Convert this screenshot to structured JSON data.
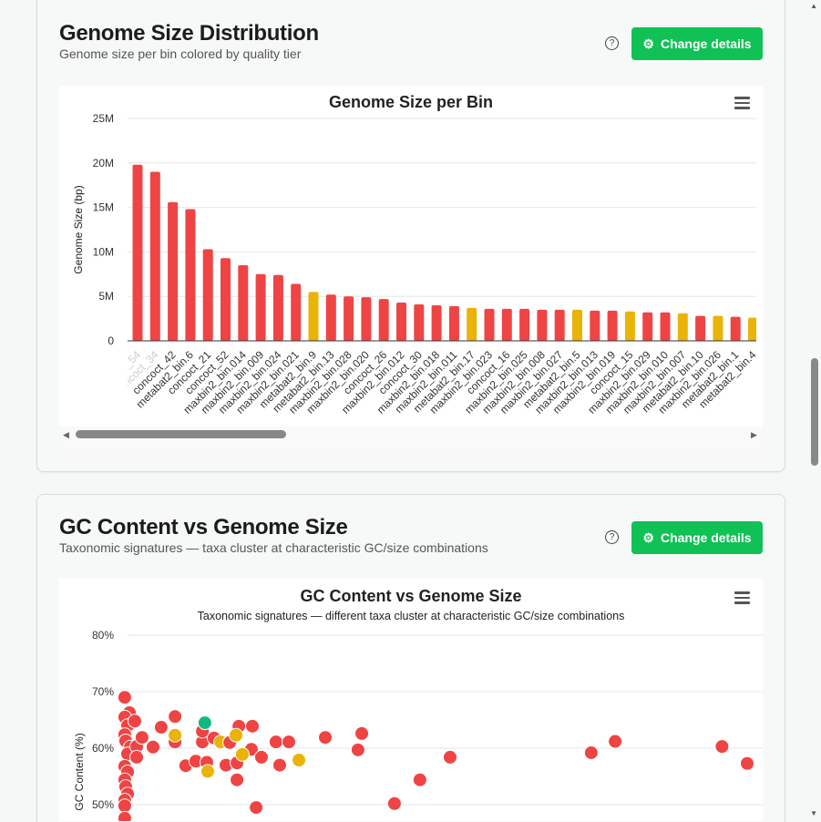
{
  "section1": {
    "title": "Genome Size Distribution",
    "subtitle": "Genome size per bin colored by quality tier",
    "button": "Change details",
    "help": "?"
  },
  "section2": {
    "title": "GC Content vs Genome Size",
    "subtitle": "Taxonomic signatures — taxa cluster at characteristic GC/size combinations",
    "button": "Change details",
    "help": "?"
  },
  "colors": {
    "low": "#ef4444",
    "medium": "#eab308",
    "high": "#10b981",
    "button": "#10c155"
  },
  "chart_data": [
    {
      "type": "bar",
      "title": "Genome Size per Bin",
      "ylabel": "Genome Size (bp)",
      "ylim": [
        0,
        25000000
      ],
      "yticks": [
        "0",
        "5M",
        "10M",
        "15M",
        "20M",
        "25M"
      ],
      "grid": true,
      "categories": [
        "concoct_54",
        "concoct_34",
        "concoct_42",
        "metabat2_bin.6",
        "concoct_21",
        "concoct_52",
        "maxbin2_bin.014",
        "maxbin2_bin.009",
        "maxbin2_bin.024",
        "maxbin2_bin.021",
        "metabat2_bin.9",
        "metabat2_bin.13",
        "maxbin2_bin.028",
        "maxbin2_bin.020",
        "concoct_26",
        "maxbin2_bin.012",
        "concoct_30",
        "maxbin2_bin.018",
        "maxbin2_bin.011",
        "metabat2_bin.17",
        "maxbin2_bin.023",
        "concoct_16",
        "maxbin2_bin.025",
        "maxbin2_bin.008",
        "maxbin2_bin.027",
        "metabat2_bin.5",
        "maxbin2_bin.013",
        "maxbin2_bin.019",
        "concoct_15",
        "maxbin2_bin.029",
        "maxbin2_bin.010",
        "maxbin2_bin.007",
        "metabat2_bin.10",
        "maxbin2_bin.026",
        "metabat2_bin.1",
        "metabat2_bin.4"
      ],
      "values": [
        19800000,
        19000000,
        15600000,
        14800000,
        10300000,
        9300000,
        8500000,
        7500000,
        7400000,
        6400000,
        5500000,
        5200000,
        5000000,
        4900000,
        4700000,
        4300000,
        4100000,
        4000000,
        3900000,
        3700000,
        3600000,
        3600000,
        3600000,
        3500000,
        3500000,
        3500000,
        3400000,
        3400000,
        3300000,
        3200000,
        3200000,
        3100000,
        2800000,
        2800000,
        2700000,
        2600000
      ],
      "tiers": [
        "low",
        "low",
        "low",
        "low",
        "low",
        "low",
        "low",
        "low",
        "low",
        "low",
        "medium",
        "low",
        "low",
        "low",
        "low",
        "low",
        "low",
        "low",
        "low",
        "medium",
        "low",
        "low",
        "low",
        "low",
        "low",
        "medium",
        "low",
        "low",
        "medium",
        "low",
        "low",
        "medium",
        "low",
        "medium",
        "low",
        "medium"
      ]
    },
    {
      "type": "scatter",
      "title": "GC Content vs Genome Size",
      "subtitle": "Taxonomic signatures — different taxa cluster at characteristic GC/size combinations",
      "ylabel": "GC Content (%)",
      "ylim": [
        45,
        80
      ],
      "yticks": [
        "50%",
        "60%",
        "70%",
        "80%"
      ],
      "grid": true,
      "points": [
        {
          "x": 0.2,
          "y": 69.0,
          "tier": "low"
        },
        {
          "x": 0.35,
          "y": 66.3,
          "tier": "low"
        },
        {
          "x": 0.2,
          "y": 65.5,
          "tier": "low"
        },
        {
          "x": 0.29,
          "y": 64.0,
          "tier": "low"
        },
        {
          "x": 0.52,
          "y": 64.8,
          "tier": "low"
        },
        {
          "x": 0.2,
          "y": 62.4,
          "tier": "low"
        },
        {
          "x": 0.23,
          "y": 61.3,
          "tier": "low"
        },
        {
          "x": 0.38,
          "y": 60.2,
          "tier": "low"
        },
        {
          "x": 0.29,
          "y": 59.0,
          "tier": "low"
        },
        {
          "x": 0.58,
          "y": 60.3,
          "tier": "low"
        },
        {
          "x": 0.58,
          "y": 58.4,
          "tier": "low"
        },
        {
          "x": 0.2,
          "y": 56.8,
          "tier": "low"
        },
        {
          "x": 0.29,
          "y": 55.8,
          "tier": "low"
        },
        {
          "x": 0.2,
          "y": 54.4,
          "tier": "low"
        },
        {
          "x": 0.23,
          "y": 53.2,
          "tier": "low"
        },
        {
          "x": 0.29,
          "y": 51.9,
          "tier": "low"
        },
        {
          "x": 0.2,
          "y": 50.8,
          "tier": "low"
        },
        {
          "x": 0.2,
          "y": 49.8,
          "tier": "low"
        },
        {
          "x": 0.2,
          "y": 47.6,
          "tier": "low"
        },
        {
          "x": 0.75,
          "y": 61.9,
          "tier": "low"
        },
        {
          "x": 1.1,
          "y": 60.2,
          "tier": "low"
        },
        {
          "x": 1.36,
          "y": 63.7,
          "tier": "low"
        },
        {
          "x": 1.8,
          "y": 65.6,
          "tier": "low"
        },
        {
          "x": 1.8,
          "y": 61.1,
          "tier": "low"
        },
        {
          "x": 1.8,
          "y": 62.3,
          "tier": "medium"
        },
        {
          "x": 2.14,
          "y": 56.9,
          "tier": "low"
        },
        {
          "x": 2.46,
          "y": 57.7,
          "tier": "low"
        },
        {
          "x": 2.67,
          "y": 61.1,
          "tier": "low"
        },
        {
          "x": 2.67,
          "y": 63.0,
          "tier": "low"
        },
        {
          "x": 2.81,
          "y": 57.5,
          "tier": "low"
        },
        {
          "x": 3.04,
          "y": 61.8,
          "tier": "low"
        },
        {
          "x": 3.25,
          "y": 61.1,
          "tier": "medium"
        },
        {
          "x": 3.42,
          "y": 57.0,
          "tier": "low"
        },
        {
          "x": 3.54,
          "y": 61.0,
          "tier": "low"
        },
        {
          "x": 3.77,
          "y": 54.4,
          "tier": "low"
        },
        {
          "x": 3.83,
          "y": 63.9,
          "tier": "low"
        },
        {
          "x": 3.77,
          "y": 57.4,
          "tier": "low"
        },
        {
          "x": 4.26,
          "y": 63.9,
          "tier": "low"
        },
        {
          "x": 4.23,
          "y": 59.8,
          "tier": "low"
        },
        {
          "x": 4.38,
          "y": 49.5,
          "tier": "low"
        },
        {
          "x": 4.55,
          "y": 58.4,
          "tier": "low"
        },
        {
          "x": 5.01,
          "y": 61.1,
          "tier": "low"
        },
        {
          "x": 5.13,
          "y": 57.0,
          "tier": "low"
        },
        {
          "x": 5.42,
          "y": 61.1,
          "tier": "low"
        },
        {
          "x": 6.58,
          "y": 61.9,
          "tier": "low"
        },
        {
          "x": 7.62,
          "y": 59.7,
          "tier": "low"
        },
        {
          "x": 7.74,
          "y": 62.6,
          "tier": "low"
        },
        {
          "x": 8.78,
          "y": 50.2,
          "tier": "low"
        },
        {
          "x": 9.59,
          "y": 54.4,
          "tier": "low"
        },
        {
          "x": 10.55,
          "y": 58.4,
          "tier": "low"
        },
        {
          "x": 15.04,
          "y": 59.2,
          "tier": "low"
        },
        {
          "x": 15.8,
          "y": 61.2,
          "tier": "low"
        },
        {
          "x": 19.2,
          "y": 60.3,
          "tier": "low"
        },
        {
          "x": 20.0,
          "y": 57.3,
          "tier": "low"
        },
        {
          "x": 2.84,
          "y": 55.9,
          "tier": "medium"
        },
        {
          "x": 3.74,
          "y": 62.3,
          "tier": "medium"
        },
        {
          "x": 3.94,
          "y": 58.9,
          "tier": "medium"
        },
        {
          "x": 5.74,
          "y": 57.9,
          "tier": "medium"
        },
        {
          "x": 2.75,
          "y": 64.5,
          "tier": "high"
        }
      ]
    }
  ]
}
